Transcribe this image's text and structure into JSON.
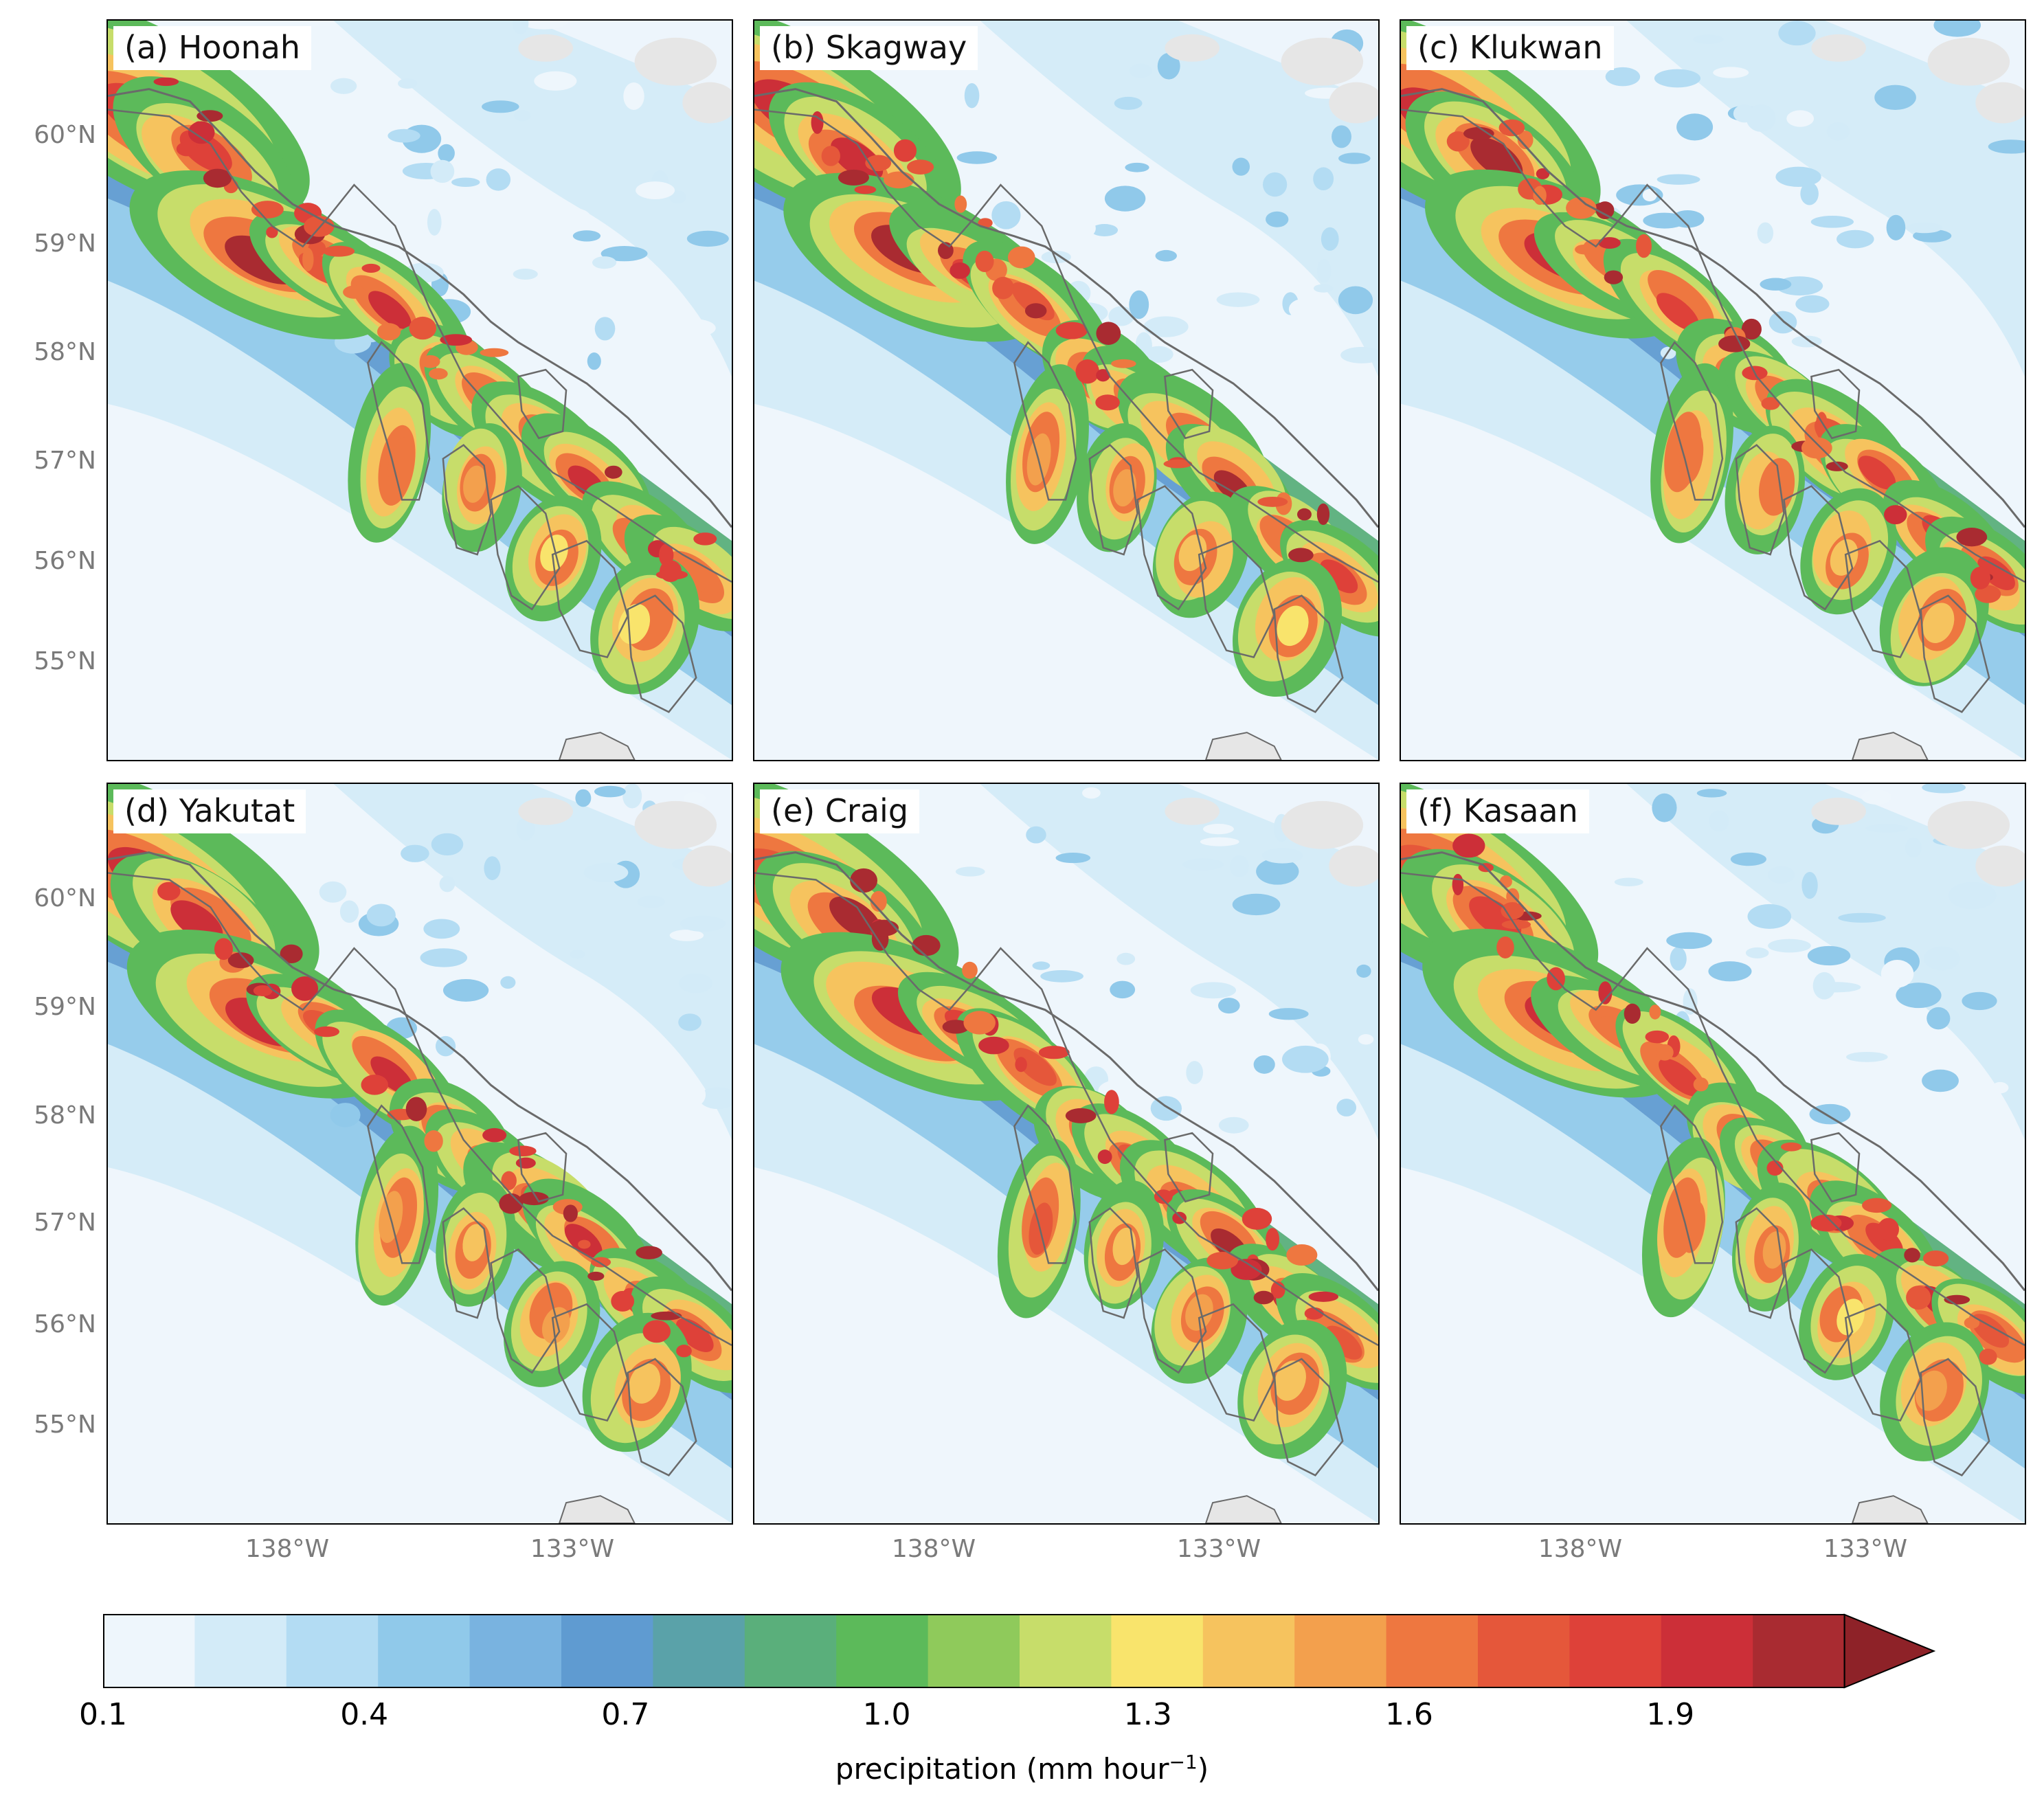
{
  "panels": [
    {
      "label": "(a) Hoonah"
    },
    {
      "label": "(b) Skagway"
    },
    {
      "label": "(c) Klukwan"
    },
    {
      "label": "(d) Yakutat"
    },
    {
      "label": "(e) Craig"
    },
    {
      "label": "(f) Kasaan"
    }
  ],
  "axes": {
    "lat_ticks": [
      "60°N",
      "59°N",
      "58°N",
      "57°N",
      "56°N",
      "55°N"
    ],
    "lon_ticks": [
      "138°W",
      "133°W"
    ]
  },
  "colorbar": {
    "label_main": "precipitation (mm hour",
    "label_sup": "−1",
    "label_end": ")",
    "ticks": [
      "0.1",
      "0.4",
      "0.7",
      "1.0",
      "1.3",
      "1.6",
      "1.9"
    ],
    "levels": [
      0.1,
      0.2,
      0.3,
      0.4,
      0.5,
      0.6,
      0.7,
      0.8,
      0.9,
      1.0,
      1.1,
      1.2,
      1.3,
      1.4,
      1.5,
      1.6,
      1.7,
      1.8,
      1.9,
      2.0,
      2.1
    ],
    "colors": [
      "#eef6fc",
      "#d3ebf8",
      "#b3dcf3",
      "#90c9ea",
      "#79b3e0",
      "#5f9bd1",
      "#5aa2a9",
      "#5aaf7b",
      "#5cba5a",
      "#8fca5b",
      "#c7dd6a",
      "#f9e46c",
      "#f6c35e",
      "#f3a04d",
      "#ee7740",
      "#e5573a",
      "#de4139",
      "#cc2f38",
      "#a92b31",
      "#8e2228"
    ],
    "extend": "max"
  },
  "land_color": "#e6e6e6",
  "coast_color": "#6a6a6a"
}
